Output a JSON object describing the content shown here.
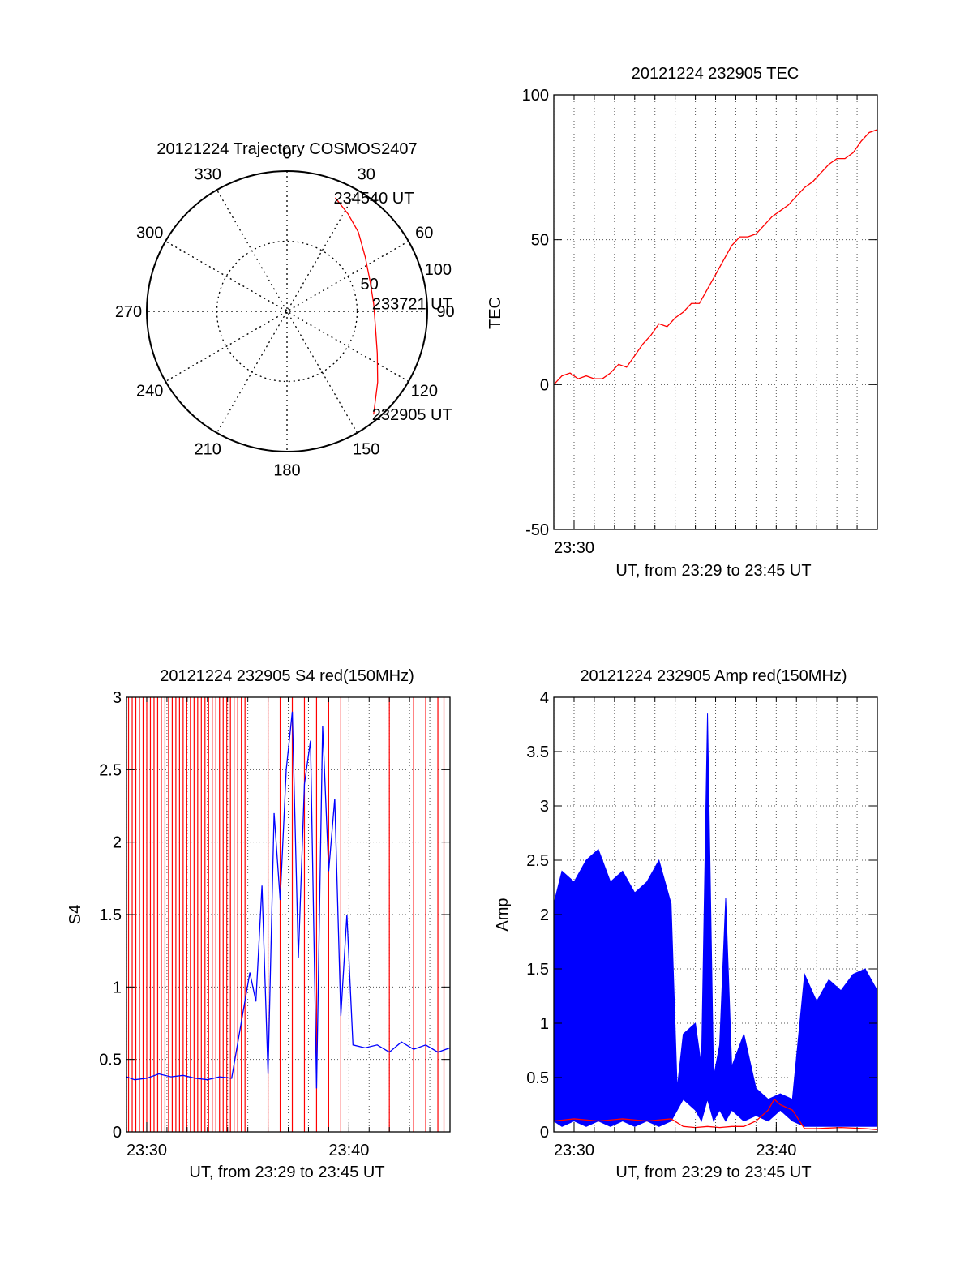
{
  "chart_data": [
    {
      "type": "polar",
      "title": "20121224 Trajectory COSMOS2407",
      "azimuth_labels": [
        "0",
        "30",
        "60",
        "90",
        "120",
        "150",
        "180",
        "210",
        "240",
        "270",
        "300",
        "330"
      ],
      "radial_labels": [
        "50",
        "100"
      ],
      "series": [
        {
          "color": "#ff0000",
          "points": [
            {
              "az": 23,
              "zen": 88
            },
            {
              "az": 32,
              "zen": 82
            },
            {
              "az": 42,
              "zen": 76
            },
            {
              "az": 55,
              "zen": 68
            },
            {
              "az": 70,
              "zen": 63
            },
            {
              "az": 85,
              "zen": 62
            },
            {
              "az": 100,
              "zen": 64
            },
            {
              "az": 115,
              "zen": 71
            },
            {
              "az": 128,
              "zen": 82
            },
            {
              "az": 140,
              "zen": 96
            }
          ]
        }
      ],
      "annotations": [
        {
          "text": "234540 UT",
          "az": 23,
          "zen": 88
        },
        {
          "text": "233721 UT",
          "az": 85,
          "zen": 62
        },
        {
          "text": "232905 UT",
          "az": 140,
          "zen": 96
        }
      ]
    },
    {
      "type": "line",
      "title": "20121224 232905 TEC",
      "xlabel": "UT, from 23:29 to 23:45 UT",
      "ylabel": "TEC",
      "xlim": [
        23.4833,
        23.75
      ],
      "ylim": [
        -50,
        100
      ],
      "xticks": [
        {
          "value": 23.5,
          "label": "23:30"
        }
      ],
      "yticks": [
        {
          "value": -50,
          "label": "-50"
        },
        {
          "value": 0,
          "label": "0"
        },
        {
          "value": 50,
          "label": "50"
        },
        {
          "value": 100,
          "label": "100"
        }
      ],
      "grid": true,
      "series": [
        {
          "color": "#ff0000",
          "x": [
            23.4833,
            23.49,
            23.4967,
            23.5033,
            23.51,
            23.5167,
            23.5233,
            23.53,
            23.5367,
            23.5433,
            23.55,
            23.5567,
            23.5633,
            23.57,
            23.5767,
            23.5833,
            23.59,
            23.5967,
            23.6033,
            23.61,
            23.6167,
            23.6233,
            23.63,
            23.6367,
            23.6433,
            23.65,
            23.6567,
            23.6633,
            23.67,
            23.6767,
            23.6833,
            23.69,
            23.6967,
            23.7033,
            23.71,
            23.7167,
            23.7233,
            23.73,
            23.7367,
            23.7433,
            23.75
          ],
          "y": [
            0,
            3,
            4,
            2,
            3,
            2,
            2,
            4,
            7,
            6,
            10,
            14,
            17,
            21,
            20,
            23,
            25,
            28,
            28,
            33,
            38,
            43,
            48,
            51,
            51,
            52,
            55,
            58,
            60,
            62,
            65,
            68,
            70,
            73,
            76,
            78,
            78,
            80,
            84,
            87,
            88
          ]
        }
      ]
    },
    {
      "type": "line",
      "title": "20121224 232905 S4 red(150MHz)",
      "xlabel": "UT, from 23:29 to 23:45 UT",
      "ylabel": "S4",
      "xlim": [
        23.4833,
        23.75
      ],
      "ylim": [
        0,
        3
      ],
      "xticks": [
        {
          "value": 23.5,
          "label": "23:30"
        },
        {
          "value": 23.6667,
          "label": "23:40"
        }
      ],
      "yticks": [
        {
          "value": 0,
          "label": "0"
        },
        {
          "value": 0.5,
          "label": "0.5"
        },
        {
          "value": 1,
          "label": "1"
        },
        {
          "value": 1.5,
          "label": "1.5"
        },
        {
          "value": 2,
          "label": "2"
        },
        {
          "value": 2.5,
          "label": "2.5"
        },
        {
          "value": 3,
          "label": "3"
        }
      ],
      "grid": true,
      "series": [
        {
          "color": "#ff0000",
          "style": "spikes",
          "x": [
            23.485,
            23.488,
            23.491,
            23.494,
            23.497,
            23.5,
            23.503,
            23.506,
            23.509,
            23.512,
            23.515,
            23.518,
            23.521,
            23.524,
            23.527,
            23.53,
            23.533,
            23.536,
            23.539,
            23.542,
            23.545,
            23.548,
            23.551,
            23.554,
            23.557,
            23.56,
            23.563,
            23.566,
            23.569,
            23.572,
            23.575,
            23.578,
            23.581,
            23.6,
            23.61,
            23.62,
            23.63,
            23.64,
            23.65,
            23.66,
            23.7,
            23.72,
            23.73,
            23.74,
            23.745
          ],
          "y": [
            3,
            3,
            3,
            3,
            3,
            3,
            3,
            3,
            3,
            3,
            3,
            3,
            3,
            3,
            3,
            3,
            3,
            3,
            3,
            3,
            3,
            3,
            3,
            3,
            3,
            3,
            3,
            3,
            3,
            3,
            3,
            3,
            3,
            3,
            3,
            3,
            3,
            3,
            3,
            3,
            3,
            3,
            3,
            3,
            3
          ]
        },
        {
          "color": "#0000ff",
          "x": [
            23.4833,
            23.49,
            23.5,
            23.51,
            23.52,
            23.53,
            23.54,
            23.55,
            23.56,
            23.57,
            23.585,
            23.59,
            23.595,
            23.6,
            23.605,
            23.61,
            23.615,
            23.62,
            23.625,
            23.63,
            23.635,
            23.64,
            23.645,
            23.65,
            23.655,
            23.66,
            23.665,
            23.67,
            23.68,
            23.69,
            23.7,
            23.71,
            23.72,
            23.73,
            23.74,
            23.75
          ],
          "y": [
            0.38,
            0.36,
            0.37,
            0.4,
            0.38,
            0.39,
            0.37,
            0.36,
            0.38,
            0.37,
            1.1,
            0.9,
            1.7,
            0.4,
            2.2,
            1.6,
            2.5,
            2.9,
            1.2,
            2.4,
            2.7,
            0.3,
            2.8,
            1.8,
            2.3,
            0.8,
            1.5,
            0.6,
            0.58,
            0.6,
            0.55,
            0.62,
            0.57,
            0.6,
            0.55,
            0.58
          ]
        }
      ]
    },
    {
      "type": "line",
      "title": "20121224 232905 Amp red(150MHz)",
      "xlabel": "UT, from 23:29 to 23:45 UT",
      "ylabel": "Amp",
      "xlim": [
        23.4833,
        23.75
      ],
      "ylim": [
        0,
        4
      ],
      "xticks": [
        {
          "value": 23.5,
          "label": "23:30"
        },
        {
          "value": 23.6667,
          "label": "23:40"
        }
      ],
      "yticks": [
        {
          "value": 0,
          "label": "0"
        },
        {
          "value": 0.5,
          "label": "0.5"
        },
        {
          "value": 1,
          "label": "1"
        },
        {
          "value": 1.5,
          "label": "1.5"
        },
        {
          "value": 2,
          "label": "2"
        },
        {
          "value": 2.5,
          "label": "2.5"
        },
        {
          "value": 3,
          "label": "3"
        },
        {
          "value": 3.5,
          "label": "3.5"
        },
        {
          "value": 4,
          "label": "4"
        }
      ],
      "grid": true,
      "series": [
        {
          "color": "#0000ff",
          "style": "band",
          "x": [
            23.4833,
            23.49,
            23.5,
            23.51,
            23.52,
            23.53,
            23.54,
            23.55,
            23.56,
            23.57,
            23.58,
            23.585,
            23.59,
            23.6,
            23.605,
            23.61,
            23.615,
            23.62,
            23.625,
            23.63,
            23.64,
            23.65,
            23.66,
            23.67,
            23.68,
            23.69,
            23.7,
            23.71,
            23.72,
            23.73,
            23.74,
            23.75
          ],
          "y_max": [
            2.1,
            2.4,
            2.3,
            2.5,
            2.6,
            2.3,
            2.4,
            2.2,
            2.3,
            2.5,
            2.1,
            0.4,
            0.9,
            1.0,
            0.6,
            3.85,
            0.5,
            0.8,
            2.15,
            0.6,
            0.9,
            0.4,
            0.3,
            0.35,
            0.3,
            1.45,
            1.2,
            1.4,
            1.3,
            1.45,
            1.5,
            1.3
          ],
          "y_min": [
            0.1,
            0.05,
            0.1,
            0.05,
            0.1,
            0.05,
            0.1,
            0.05,
            0.1,
            0.05,
            0.1,
            0.2,
            0.3,
            0.2,
            0.1,
            0.3,
            0.1,
            0.2,
            0.1,
            0.2,
            0.1,
            0.15,
            0.1,
            0.2,
            0.1,
            0.05,
            0.05,
            0.05,
            0.05,
            0.05,
            0.05,
            0.05
          ]
        },
        {
          "color": "#ff0000",
          "x": [
            23.4833,
            23.5,
            23.52,
            23.54,
            23.56,
            23.58,
            23.59,
            23.6,
            23.61,
            23.62,
            23.63,
            23.64,
            23.65,
            23.66,
            23.665,
            23.67,
            23.68,
            23.69,
            23.7,
            23.72,
            23.74,
            23.75
          ],
          "y": [
            0.1,
            0.12,
            0.1,
            0.12,
            0.1,
            0.12,
            0.05,
            0.04,
            0.05,
            0.04,
            0.05,
            0.05,
            0.1,
            0.2,
            0.3,
            0.25,
            0.2,
            0.03,
            0.03,
            0.04,
            0.03,
            0.02
          ]
        }
      ]
    }
  ]
}
